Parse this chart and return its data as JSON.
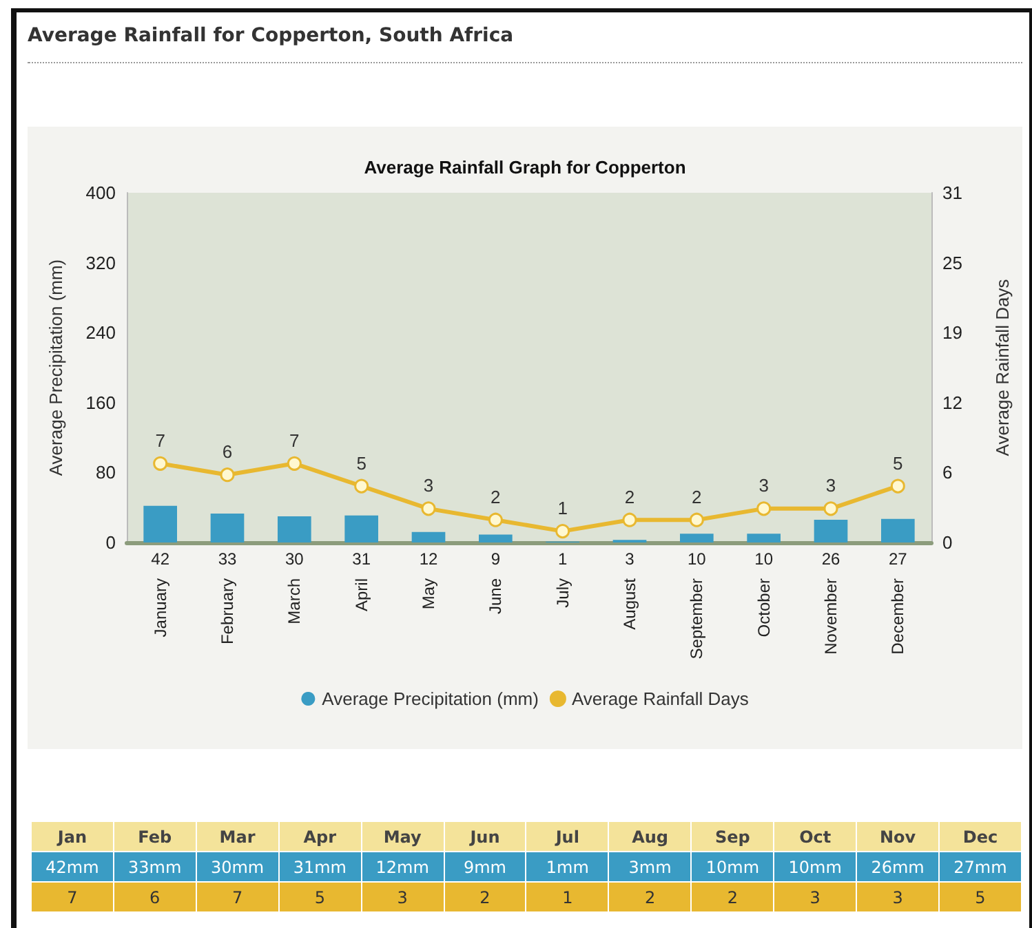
{
  "chart_data": {
    "type": "bar",
    "title": "Average Rainfall for Copperton, South Africa",
    "subtitle": "Average Rainfall Graph for Copperton",
    "ylabel": "Average Precipitation (mm)",
    "y2label": "Average Rainfall Days",
    "categories": [
      "January",
      "February",
      "March",
      "April",
      "May",
      "June",
      "July",
      "August",
      "September",
      "October",
      "November",
      "December"
    ],
    "series": [
      {
        "name": "Average Precipitation (mm)",
        "color": "#3a9cc4",
        "values": [
          42,
          33,
          30,
          31,
          12,
          9,
          1,
          3,
          10,
          10,
          26,
          27
        ]
      },
      {
        "name": "Average Rainfall Days",
        "type": "line",
        "axis": "y2",
        "color": "#e8b830",
        "values": [
          7,
          6,
          7,
          5,
          3,
          2,
          1,
          2,
          2,
          3,
          3,
          5
        ]
      }
    ],
    "ylim": [
      0,
      400
    ],
    "yticks": [
      0,
      80,
      160,
      240,
      320,
      400
    ],
    "y2lim": [
      0,
      31
    ],
    "y2ticks": [
      0,
      {
        "value": 6.2,
        "label": "6"
      },
      {
        "value": 12.4,
        "label": "12"
      },
      {
        "value": 18.6,
        "label": "19"
      },
      {
        "value": 24.8,
        "label": "25"
      },
      31
    ],
    "annotations": [
      "Jan",
      "Feb",
      "Mar",
      "Apr",
      "May",
      "Jun",
      "Jul",
      "Aug",
      "Sep",
      "Oct",
      "Nov",
      "Dec",
      "42mm",
      "33mm",
      "30mm",
      "31mm",
      "12mm",
      "9mm",
      "1mm",
      "3mm",
      "10mm",
      "10mm",
      "26mm",
      "27mm",
      "7",
      "6",
      "7",
      "5",
      "3",
      "2",
      "1",
      "2",
      "2",
      "3",
      "3",
      "5"
    ],
    "data_labels": true,
    "legend": "bottom",
    "grid": false,
    "marker": "circle",
    "line_style": "solid"
  }
}
